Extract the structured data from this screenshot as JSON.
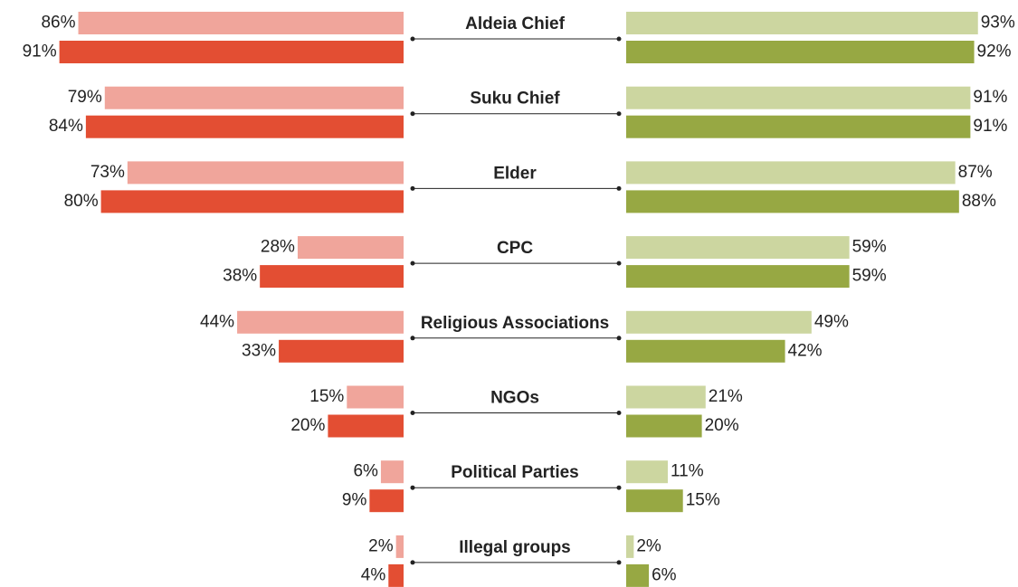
{
  "chart_data": {
    "type": "butterfly",
    "categories": [
      "Aldeia Chief",
      "Suku Chief",
      "Elder",
      "CPC",
      "Religious Associations",
      "NGOs",
      "Political Parties",
      "Illegal groups"
    ],
    "series": [
      {
        "side": "left",
        "color": "#f0a59b",
        "values": [
          86,
          79,
          73,
          28,
          44,
          15,
          6,
          2
        ],
        "value_labels": [
          "86%",
          "79%",
          "73%",
          "28%",
          "44%",
          "15%",
          "6%",
          "2%"
        ]
      },
      {
        "side": "left",
        "color": "#e34e33",
        "values": [
          91,
          84,
          80,
          38,
          33,
          20,
          9,
          4
        ],
        "value_labels": [
          "91%",
          "84%",
          "80%",
          "38%",
          "33%",
          "20%",
          "9%",
          "4%"
        ]
      },
      {
        "side": "right",
        "color": "#ccd6a0",
        "values": [
          93,
          91,
          87,
          59,
          49,
          21,
          11,
          2
        ],
        "value_labels": [
          "93%",
          "91%",
          "87%",
          "59%",
          "49%",
          "21%",
          "11%",
          "2%"
        ]
      },
      {
        "side": "right",
        "color": "#97a843",
        "values": [
          92,
          91,
          88,
          59,
          42,
          20,
          15,
          6
        ],
        "value_labels": [
          "92%",
          "91%",
          "88%",
          "59%",
          "42%",
          "20%",
          "15%",
          "6%"
        ]
      }
    ]
  }
}
